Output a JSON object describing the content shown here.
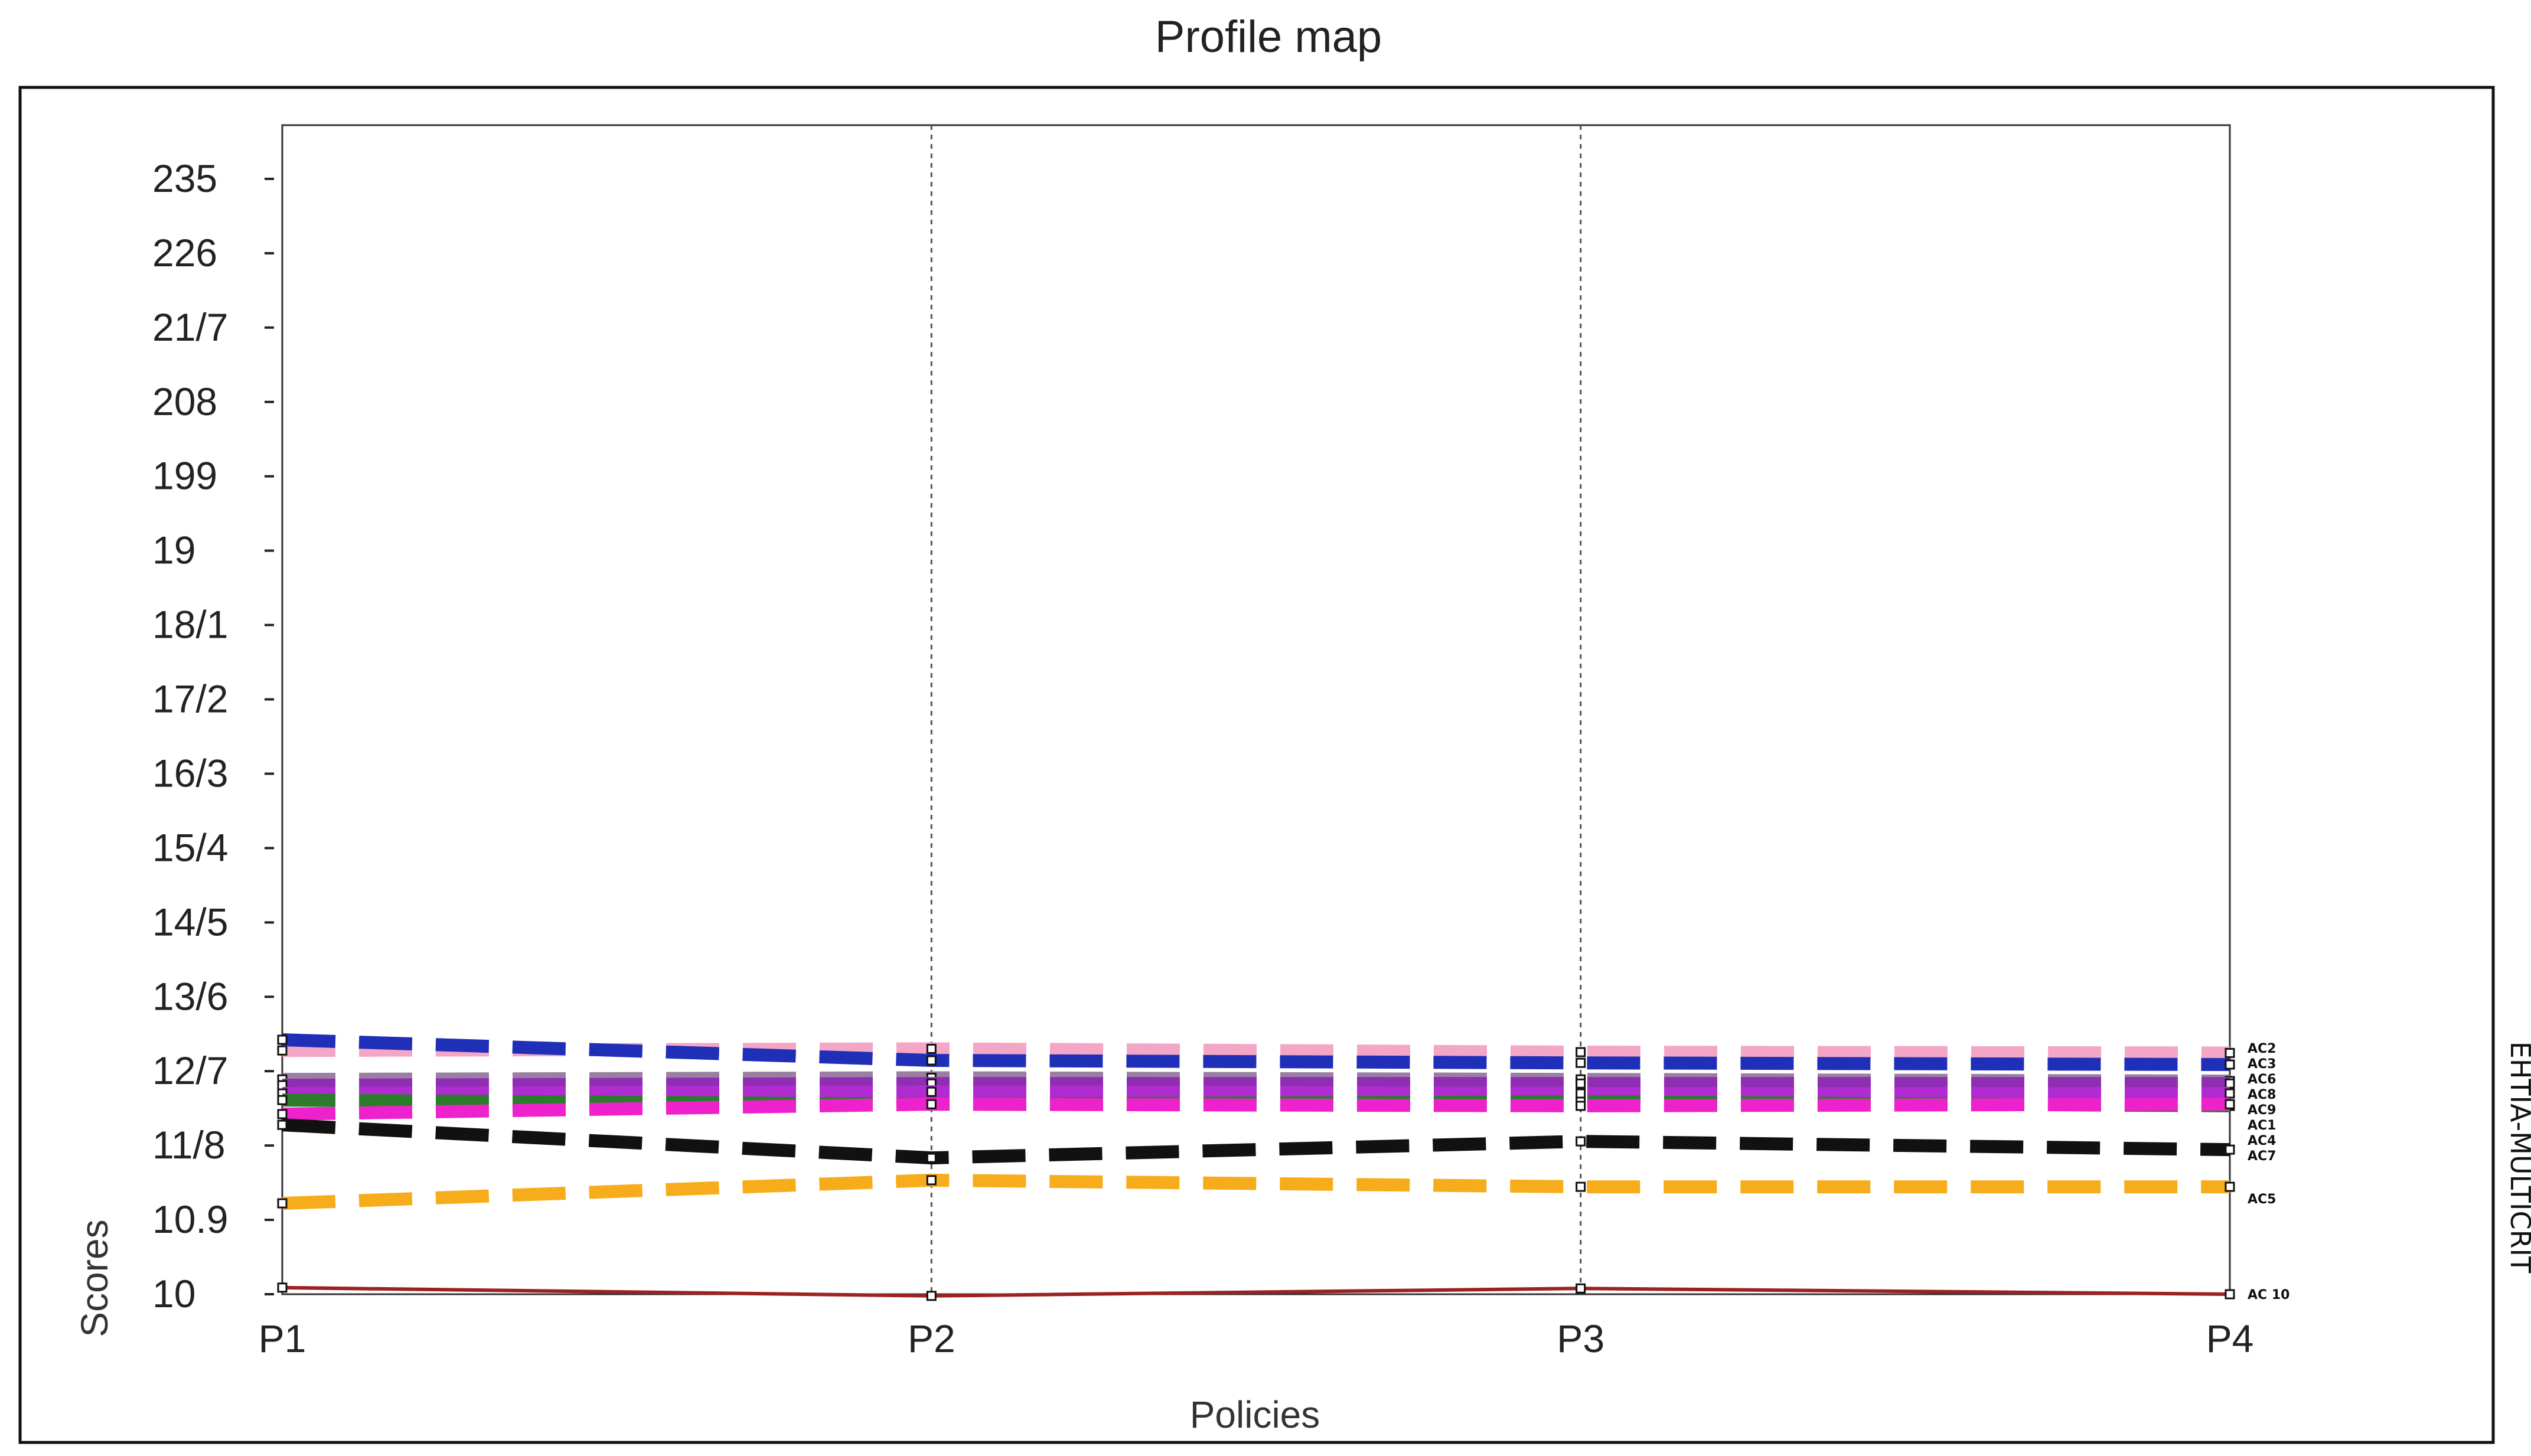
{
  "chart_data": {
    "type": "line",
    "title": "Profile map",
    "xlabel": "Policies",
    "ylabel": "Scores",
    "categories": [
      "P1",
      "P2",
      "P3",
      "P4"
    ],
    "y_tick_labels": [
      "10",
      "10.9",
      "11/8",
      "12/7",
      "13/6",
      "14/5",
      "15/4",
      "16/3",
      "17/2",
      "18/1",
      "19",
      "199",
      "208",
      "21/7",
      "226",
      "235"
    ],
    "ylim": [
      10,
      24.15
    ],
    "grid": "vertical dashed lines at each policy",
    "legend": "right, labels at line ends",
    "side_text": "EHTIA-MULTICRIT",
    "series": [
      {
        "name": "AC2",
        "values": [
          12.95,
          12.97,
          12.93,
          12.92
        ],
        "color": "#f4a6c6"
      },
      {
        "name": "AC3",
        "values": [
          13.08,
          12.83,
          12.8,
          12.78
        ],
        "color": "#1f2fb8"
      },
      {
        "name": "AC6",
        "values": [
          12.6,
          12.62,
          12.6,
          12.58
        ],
        "color": "#9a7fa3"
      },
      {
        "name": "AC8",
        "values": [
          12.53,
          12.55,
          12.55,
          12.55
        ],
        "color": "#8e2fb3"
      },
      {
        "name": "AC9",
        "values": [
          12.43,
          12.45,
          12.43,
          12.43
        ],
        "color": "#b02bd0"
      },
      {
        "name": "AC1",
        "values": [
          12.35,
          12.3,
          12.33,
          12.28
        ],
        "color": "#2b7d2b"
      },
      {
        "name": "AC4",
        "values": [
          12.18,
          12.3,
          12.28,
          12.3
        ],
        "color": "#ee22cc"
      },
      {
        "name": "AC7",
        "values": [
          12.05,
          11.65,
          11.85,
          11.75
        ],
        "color": "#111111"
      },
      {
        "name": "AC5",
        "values": [
          11.1,
          11.38,
          11.3,
          11.3
        ],
        "color": "#f7ac1b"
      },
      {
        "name": "AC 10",
        "values": [
          10.08,
          9.98,
          10.07,
          10.0
        ],
        "color": "#9b2222"
      }
    ]
  }
}
